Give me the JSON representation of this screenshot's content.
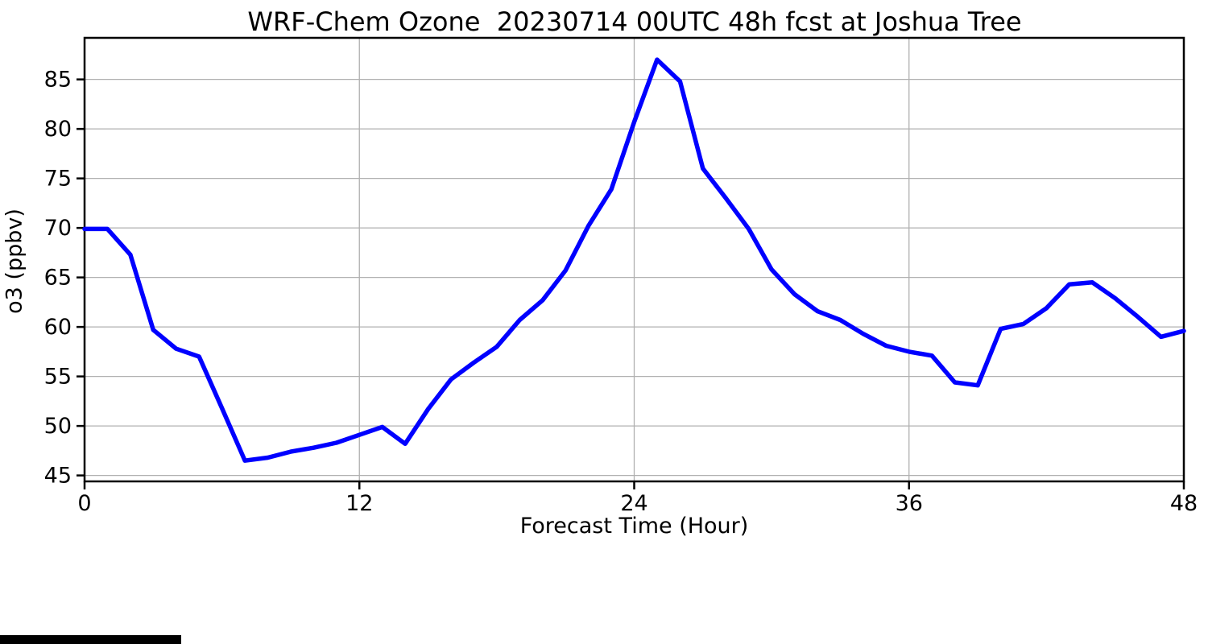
{
  "chart_data": {
    "type": "line",
    "title": "WRF-Chem Ozone  20230714 00UTC 48h fcst at Joshua Tree",
    "xlabel": "Forecast Time (Hour)",
    "ylabel": "o3  (ppbv)",
    "x": [
      0,
      1,
      2,
      3,
      4,
      5,
      6,
      7,
      8,
      9,
      10,
      11,
      12,
      13,
      14,
      15,
      16,
      17,
      18,
      19,
      20,
      21,
      22,
      23,
      24,
      25,
      26,
      27,
      28,
      29,
      30,
      31,
      32,
      33,
      34,
      35,
      36,
      37,
      38,
      39,
      40,
      41,
      42,
      43,
      44,
      45,
      46,
      47,
      48
    ],
    "series": [
      {
        "name": "o3",
        "color": "#0000ff",
        "values": [
          69.9,
          69.9,
          67.3,
          59.7,
          57.8,
          57.0,
          51.8,
          46.5,
          46.8,
          47.4,
          47.8,
          48.3,
          49.1,
          49.9,
          48.2,
          51.7,
          54.7,
          56.4,
          58.0,
          60.7,
          62.7,
          65.7,
          70.2,
          73.9,
          80.7,
          87.0,
          84.8,
          76.0,
          73.0,
          69.9,
          65.8,
          63.3,
          61.6,
          60.7,
          59.3,
          58.1,
          57.5,
          57.1,
          54.4,
          54.1,
          59.8,
          60.3,
          61.9,
          64.3,
          64.5,
          62.9,
          61.0,
          59.0,
          59.6
        ]
      }
    ],
    "x_ticks": [
      0,
      12,
      24,
      36,
      48
    ],
    "y_ticks": [
      45,
      50,
      55,
      60,
      65,
      70,
      75,
      80,
      85
    ],
    "xlim": [
      0,
      48
    ],
    "ylim": [
      44.4,
      89.2
    ],
    "grid": true,
    "grid_color": "#b0b0b0",
    "frame_color": "#000000",
    "line_width": 5.5,
    "legend": "none"
  },
  "artifacts": {
    "bottom_bar_color": "#000000"
  }
}
